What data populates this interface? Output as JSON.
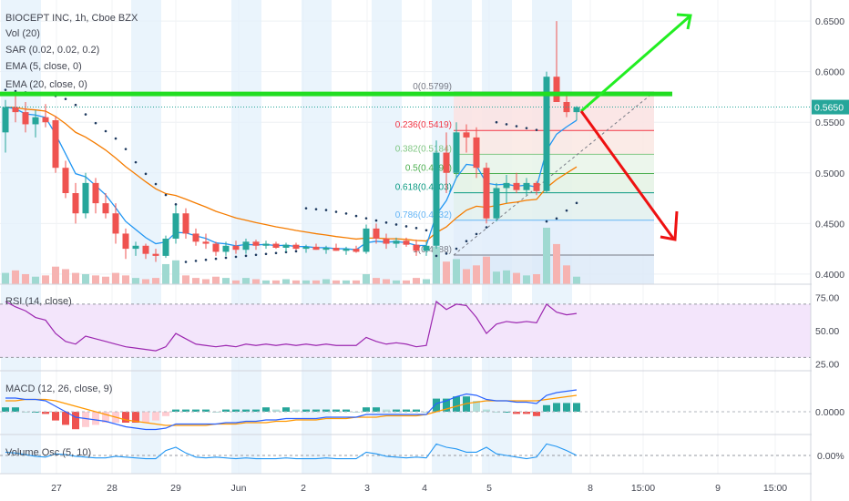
{
  "header": {
    "title": "BIOCEPT INC, 1h, Cboe BZX",
    "indicators": [
      "Vol (20)",
      "SAR (0.02, 0.02, 0.2)",
      "EMA (5, close, 0)",
      "EMA (20, close, 0)"
    ]
  },
  "panes": {
    "rsi_label": "RSI (14, close)",
    "macd_label": "MACD (12, 26, close, 9)",
    "vosc_label": "Volume Osc (5, 10)"
  },
  "price_axis": {
    "ticks": [
      "0.6500",
      "0.6000",
      "0.5500",
      "0.5000",
      "0.4500",
      "0.4000"
    ],
    "current": "0.5650"
  },
  "rsi_axis": {
    "ticks": [
      "75.00",
      "50.00",
      "25.00"
    ]
  },
  "macd_axis": {
    "ticks": [
      "0.0000"
    ]
  },
  "vosc_axis": {
    "ticks": [
      "0.00%"
    ]
  },
  "time_axis": {
    "ticks": [
      "27",
      "28",
      "29",
      "Jun",
      "2",
      "3",
      "4",
      "5",
      "8",
      "15:00",
      "9",
      "15:00"
    ]
  },
  "fibonacci": [
    {
      "label": "0(0.5799)",
      "value": 0.5799,
      "color": "#787b86"
    },
    {
      "label": "0.236(0.5419)",
      "value": 0.5419,
      "color": "#f23645"
    },
    {
      "label": "0.382(0.5184)",
      "value": 0.5184,
      "color": "#81c784"
    },
    {
      "label": "0.5(0.4993)",
      "value": 0.4993,
      "color": "#4caf50"
    },
    {
      "label": "0.618(0.4803)",
      "value": 0.4803,
      "color": "#089981"
    },
    {
      "label": "0.786(0.4532)",
      "value": 0.4532,
      "color": "#64b5f6"
    },
    {
      "label": "1(0.4188)",
      "value": 0.4188,
      "color": "#787b86"
    }
  ],
  "colors": {
    "up": "#26a69a",
    "down": "#ef5350",
    "ema5": "#2196f3",
    "ema20": "#f57c00",
    "rsi": "#9c27b0",
    "macd": "#2962ff",
    "signal": "#ff9800",
    "vosc": "#2196f3",
    "resistance": "#22dd22",
    "arrow_up": "#22ee22",
    "arrow_down": "#ee1111"
  },
  "chart_data": {
    "type": "candlestick",
    "title": "BIOCEPT INC, 1h, Cboe BZX",
    "ylim": [
      0.39,
      0.66
    ],
    "resistance_level": 0.578,
    "current_price": 0.565,
    "candles": [
      {
        "o": 0.54,
        "h": 0.572,
        "l": 0.52,
        "c": 0.565
      },
      {
        "o": 0.565,
        "h": 0.58,
        "l": 0.55,
        "c": 0.56
      },
      {
        "o": 0.56,
        "h": 0.57,
        "l": 0.54,
        "c": 0.548
      },
      {
        "o": 0.548,
        "h": 0.562,
        "l": 0.535,
        "c": 0.555
      },
      {
        "o": 0.555,
        "h": 0.568,
        "l": 0.545,
        "c": 0.55
      },
      {
        "o": 0.552,
        "h": 0.556,
        "l": 0.5,
        "c": 0.505
      },
      {
        "o": 0.505,
        "h": 0.512,
        "l": 0.475,
        "c": 0.48
      },
      {
        "o": 0.48,
        "h": 0.49,
        "l": 0.45,
        "c": 0.46
      },
      {
        "o": 0.46,
        "h": 0.5,
        "l": 0.455,
        "c": 0.49
      },
      {
        "o": 0.49,
        "h": 0.495,
        "l": 0.46,
        "c": 0.47
      },
      {
        "o": 0.47,
        "h": 0.48,
        "l": 0.455,
        "c": 0.46
      },
      {
        "o": 0.46,
        "h": 0.47,
        "l": 0.43,
        "c": 0.44
      },
      {
        "o": 0.44,
        "h": 0.445,
        "l": 0.415,
        "c": 0.425
      },
      {
        "o": 0.425,
        "h": 0.432,
        "l": 0.418,
        "c": 0.428
      },
      {
        "o": 0.428,
        "h": 0.43,
        "l": 0.415,
        "c": 0.42
      },
      {
        "o": 0.42,
        "h": 0.425,
        "l": 0.412,
        "c": 0.418
      },
      {
        "o": 0.418,
        "h": 0.438,
        "l": 0.416,
        "c": 0.435
      },
      {
        "o": 0.435,
        "h": 0.468,
        "l": 0.43,
        "c": 0.46
      },
      {
        "o": 0.46,
        "h": 0.465,
        "l": 0.435,
        "c": 0.44
      },
      {
        "o": 0.44,
        "h": 0.445,
        "l": 0.428,
        "c": 0.432
      },
      {
        "o": 0.432,
        "h": 0.44,
        "l": 0.425,
        "c": 0.43
      },
      {
        "o": 0.43,
        "h": 0.432,
        "l": 0.418,
        "c": 0.422
      },
      {
        "o": 0.422,
        "h": 0.432,
        "l": 0.418,
        "c": 0.428
      },
      {
        "o": 0.428,
        "h": 0.433,
        "l": 0.42,
        "c": 0.424
      },
      {
        "o": 0.424,
        "h": 0.435,
        "l": 0.42,
        "c": 0.432
      },
      {
        "o": 0.432,
        "h": 0.434,
        "l": 0.424,
        "c": 0.428
      },
      {
        "o": 0.428,
        "h": 0.433,
        "l": 0.425,
        "c": 0.43
      },
      {
        "o": 0.43,
        "h": 0.432,
        "l": 0.425,
        "c": 0.426
      },
      {
        "o": 0.426,
        "h": 0.431,
        "l": 0.422,
        "c": 0.429
      },
      {
        "o": 0.429,
        "h": 0.431,
        "l": 0.424,
        "c": 0.425
      },
      {
        "o": 0.425,
        "h": 0.429,
        "l": 0.421,
        "c": 0.427
      },
      {
        "o": 0.427,
        "h": 0.43,
        "l": 0.424,
        "c": 0.424
      },
      {
        "o": 0.424,
        "h": 0.428,
        "l": 0.42,
        "c": 0.426
      },
      {
        "o": 0.426,
        "h": 0.43,
        "l": 0.423,
        "c": 0.423
      },
      {
        "o": 0.423,
        "h": 0.427,
        "l": 0.419,
        "c": 0.425
      },
      {
        "o": 0.425,
        "h": 0.428,
        "l": 0.421,
        "c": 0.422
      },
      {
        "o": 0.422,
        "h": 0.449,
        "l": 0.42,
        "c": 0.445
      },
      {
        "o": 0.445,
        "h": 0.45,
        "l": 0.43,
        "c": 0.435
      },
      {
        "o": 0.435,
        "h": 0.44,
        "l": 0.425,
        "c": 0.43
      },
      {
        "o": 0.43,
        "h": 0.436,
        "l": 0.426,
        "c": 0.433
      },
      {
        "o": 0.433,
        "h": 0.436,
        "l": 0.427,
        "c": 0.429
      },
      {
        "o": 0.429,
        "h": 0.434,
        "l": 0.418,
        "c": 0.423
      },
      {
        "o": 0.423,
        "h": 0.432,
        "l": 0.418,
        "c": 0.428
      },
      {
        "o": 0.428,
        "h": 0.532,
        "l": 0.425,
        "c": 0.52
      },
      {
        "o": 0.52,
        "h": 0.54,
        "l": 0.48,
        "c": 0.5
      },
      {
        "o": 0.5,
        "h": 0.55,
        "l": 0.495,
        "c": 0.54
      },
      {
        "o": 0.54,
        "h": 0.548,
        "l": 0.52,
        "c": 0.535
      },
      {
        "o": 0.535,
        "h": 0.545,
        "l": 0.495,
        "c": 0.505
      },
      {
        "o": 0.505,
        "h": 0.51,
        "l": 0.45,
        "c": 0.455
      },
      {
        "o": 0.455,
        "h": 0.49,
        "l": 0.452,
        "c": 0.485
      },
      {
        "o": 0.485,
        "h": 0.498,
        "l": 0.47,
        "c": 0.49
      },
      {
        "o": 0.49,
        "h": 0.5,
        "l": 0.48,
        "c": 0.483
      },
      {
        "o": 0.483,
        "h": 0.495,
        "l": 0.478,
        "c": 0.49
      },
      {
        "o": 0.49,
        "h": 0.492,
        "l": 0.478,
        "c": 0.482
      },
      {
        "o": 0.482,
        "h": 0.6,
        "l": 0.48,
        "c": 0.595
      },
      {
        "o": 0.595,
        "h": 0.65,
        "l": 0.57,
        "c": 0.57
      },
      {
        "o": 0.57,
        "h": 0.58,
        "l": 0.555,
        "c": 0.56
      },
      {
        "o": 0.56,
        "h": 0.566,
        "l": 0.552,
        "c": 0.565
      }
    ],
    "volume": [
      0.9,
      1.1,
      0.8,
      0.6,
      0.7,
      1.4,
      1.2,
      0.9,
      0.8,
      0.7,
      0.6,
      0.9,
      0.7,
      0.5,
      0.4,
      0.5,
      1.6,
      1.9,
      0.7,
      0.5,
      0.4,
      0.6,
      0.5,
      0.3,
      0.5,
      0.4,
      0.3,
      0.3,
      0.4,
      0.3,
      0.3,
      0.3,
      0.4,
      0.3,
      0.3,
      0.3,
      0.8,
      0.5,
      0.4,
      0.3,
      0.3,
      0.5,
      0.4,
      3.0,
      1.8,
      2.0,
      1.2,
      1.5,
      2.2,
      1.0,
      1.1,
      0.9,
      0.7,
      0.8,
      4.5,
      3.2,
      1.5,
      0.6
    ],
    "rsi": [
      72,
      68,
      65,
      60,
      58,
      48,
      42,
      40,
      46,
      44,
      42,
      40,
      38,
      37,
      36,
      35,
      38,
      48,
      44,
      40,
      39,
      38,
      39,
      38,
      40,
      39,
      40,
      39,
      40,
      39,
      40,
      39,
      40,
      39,
      39,
      39,
      45,
      42,
      40,
      41,
      40,
      38,
      39,
      72,
      66,
      70,
      69,
      60,
      48,
      55,
      57,
      56,
      57,
      56,
      70,
      64,
      62,
      63
    ],
    "macd": [
      0.01,
      0.01,
      0.009,
      0.009,
      0.008,
      0.004,
      0.0,
      -0.004,
      -0.005,
      -0.006,
      -0.007,
      -0.009,
      -0.011,
      -0.012,
      -0.013,
      -0.013,
      -0.012,
      -0.009,
      -0.009,
      -0.009,
      -0.009,
      -0.009,
      -0.008,
      -0.008,
      -0.007,
      -0.007,
      -0.006,
      -0.006,
      -0.005,
      -0.005,
      -0.005,
      -0.005,
      -0.004,
      -0.004,
      -0.004,
      -0.004,
      -0.002,
      -0.002,
      -0.002,
      -0.002,
      -0.002,
      -0.002,
      -0.002,
      0.006,
      0.008,
      0.011,
      0.013,
      0.012,
      0.009,
      0.008,
      0.008,
      0.007,
      0.007,
      0.006,
      0.012,
      0.014,
      0.015,
      0.016
    ],
    "signal": [
      0.008,
      0.008,
      0.009,
      0.009,
      0.009,
      0.008,
      0.006,
      0.004,
      0.002,
      0.0,
      -0.002,
      -0.004,
      -0.006,
      -0.007,
      -0.008,
      -0.009,
      -0.01,
      -0.01,
      -0.01,
      -0.01,
      -0.01,
      -0.009,
      -0.009,
      -0.009,
      -0.008,
      -0.008,
      -0.008,
      -0.007,
      -0.007,
      -0.006,
      -0.006,
      -0.006,
      -0.005,
      -0.005,
      -0.005,
      -0.004,
      -0.004,
      -0.004,
      -0.003,
      -0.003,
      -0.003,
      -0.003,
      -0.002,
      0.0,
      0.002,
      0.004,
      0.006,
      0.007,
      0.008,
      0.008,
      0.008,
      0.008,
      0.008,
      0.008,
      0.009,
      0.01,
      0.011,
      0.012
    ],
    "vosc": [
      0.2,
      0.15,
      0.05,
      -0.05,
      -0.1,
      0.1,
      0.05,
      -0.05,
      -0.1,
      -0.15,
      -0.15,
      -0.05,
      -0.1,
      -0.15,
      -0.2,
      -0.2,
      0.3,
      0.5,
      0.15,
      -0.1,
      -0.15,
      -0.1,
      -0.15,
      -0.2,
      -0.15,
      -0.2,
      -0.2,
      -0.2,
      -0.15,
      -0.2,
      -0.2,
      -0.2,
      -0.15,
      -0.2,
      -0.2,
      -0.2,
      0.2,
      0.1,
      -0.05,
      -0.1,
      -0.15,
      -0.1,
      -0.15,
      0.7,
      0.5,
      0.4,
      0.2,
      0.2,
      0.5,
      0.1,
      0.0,
      -0.1,
      -0.2,
      -0.1,
      0.7,
      0.55,
      0.3,
      0.0
    ]
  }
}
